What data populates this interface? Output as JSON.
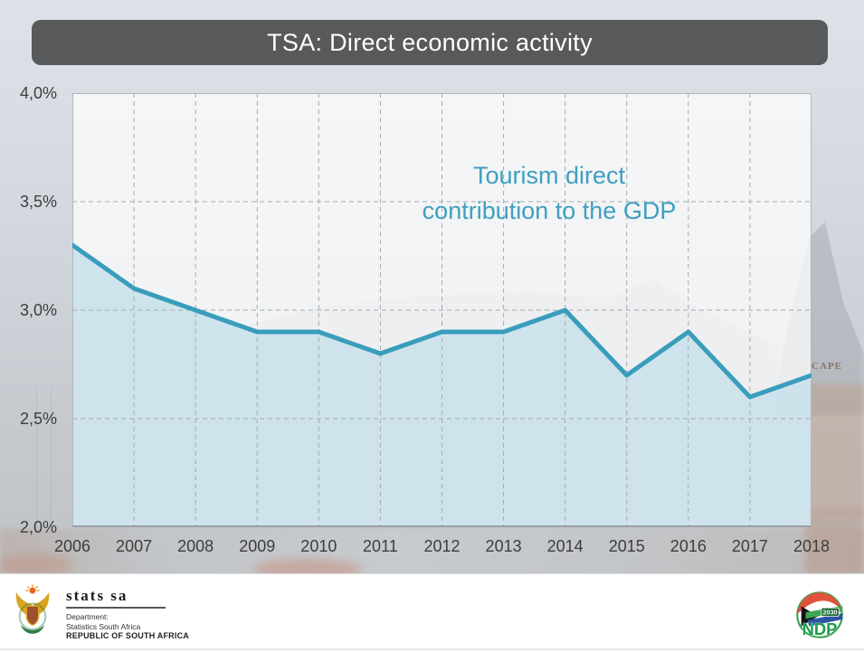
{
  "slide": {
    "title": "TSA: Direct economic activity",
    "titlebar_color": "#58595b"
  },
  "chart": {
    "annotation_line1": "Tourism direct",
    "annotation_line2": "contribution to the GDP",
    "annotation_color": "#3f9fc0"
  },
  "chart_data": {
    "type": "area",
    "title": "Tourism direct contribution to the GDP",
    "x": [
      2006,
      2007,
      2008,
      2009,
      2010,
      2011,
      2012,
      2013,
      2014,
      2015,
      2016,
      2017,
      2018
    ],
    "values": [
      3.3,
      3.1,
      3.0,
      2.9,
      2.9,
      2.8,
      2.9,
      2.9,
      3.0,
      2.7,
      2.9,
      2.6,
      2.7
    ],
    "xlabel": "",
    "ylabel": "",
    "ylim": [
      2.0,
      4.0
    ],
    "yticks": [
      4.0,
      3.5,
      3.0,
      2.5,
      2.0
    ],
    "ytick_labels": [
      "4,0%",
      "3,5%",
      "3,0%",
      "2,5%",
      "2,0%"
    ],
    "ygrid": [
      3.5,
      3.0,
      2.5
    ],
    "grid": "dashed",
    "legend": "none",
    "line_color": "#3a9dbc",
    "fill_color": "#c8e0ea",
    "grid_color": "#a6abae"
  },
  "background": {
    "cape_sign": "CAPE"
  },
  "footer": {
    "statssa": {
      "brand": "stats sa",
      "dept_label": "Department:",
      "dept_name": "Statistics South Africa",
      "country": "REPUBLIC OF SOUTH AFRICA"
    },
    "ndp": {
      "label": "NDP",
      "year": "2030"
    }
  }
}
